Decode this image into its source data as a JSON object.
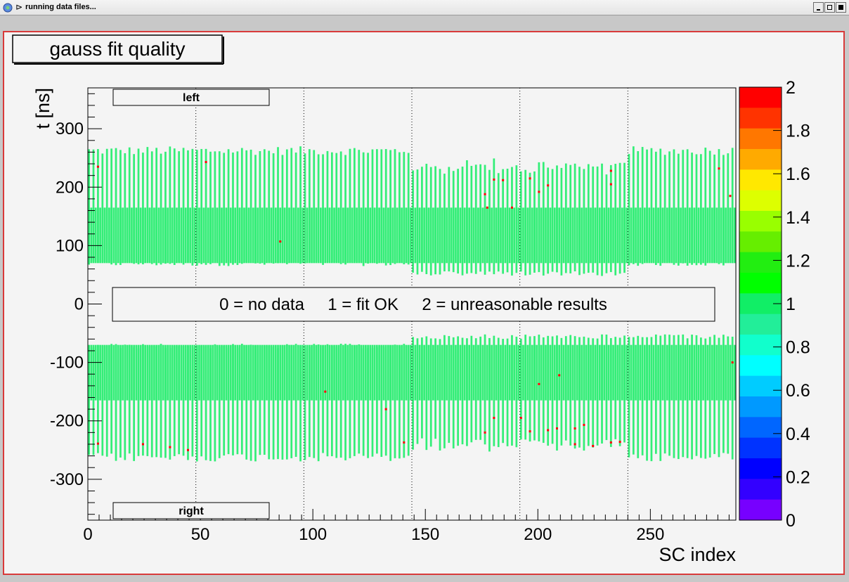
{
  "window": {
    "title": "running data files..."
  },
  "colors": {
    "frame_border": "#d83a3a",
    "background": "#f4f4f4",
    "bar_fill": "#33ee77",
    "quality2_mark": "#ff0000"
  },
  "chart_data": {
    "type": "heatmap",
    "title": "gauss fit quality",
    "xlabel": "SC index",
    "ylabel": "t  [ns]",
    "xlim": [
      0,
      288
    ],
    "ylim": [
      -370,
      370
    ],
    "xticks": [
      0,
      50,
      100,
      150,
      200,
      250
    ],
    "yticks": [
      -300,
      -200,
      -100,
      0,
      100,
      200,
      300
    ],
    "sector_boundaries": [
      48,
      96,
      144,
      192,
      240
    ],
    "legend_text": "0 = no data     1 = fit OK     2 = unreasonable results",
    "side_labels": {
      "top": "left",
      "bottom": "right"
    },
    "colorbar": {
      "min": 0,
      "max": 2,
      "tick_labels": [
        "2",
        "1.8",
        "1.6",
        "1.4",
        "1.2",
        "1",
        "0.8",
        "0.6",
        "0.4",
        "0.2",
        "0"
      ],
      "colors": [
        "#ff0000",
        "#ff3300",
        "#ff7700",
        "#ffaa00",
        "#ffe800",
        "#ddff00",
        "#99ff00",
        "#66ee00",
        "#22ee11",
        "#00ff00",
        "#11ee66",
        "#22ee99",
        "#11ffcc",
        "#00ffff",
        "#00ccff",
        "#0099ff",
        "#0066ff",
        "#0033ff",
        "#0000ff",
        "#3300ff",
        "#7700ff"
      ]
    },
    "bands": {
      "left": {
        "common_y": [
          70,
          165
        ],
        "upper_top_range": [
          255,
          270
        ]
      },
      "right": {
        "common_y": [
          -165,
          -70
        ],
        "lower_bottom_range": [
          -270,
          -255
        ]
      }
    },
    "quality2_points": [
      {
        "x": 85,
        "y": 107
      },
      {
        "x": 52,
        "y": 243
      },
      {
        "x": 176,
        "y": 188
      },
      {
        "x": 177,
        "y": 165
      },
      {
        "x": 180,
        "y": 213
      },
      {
        "x": 184,
        "y": 212
      },
      {
        "x": 188,
        "y": 165
      },
      {
        "x": 196,
        "y": 215
      },
      {
        "x": 200,
        "y": 192
      },
      {
        "x": 204,
        "y": 203
      },
      {
        "x": 232,
        "y": 228
      },
      {
        "x": 232,
        "y": 205
      },
      {
        "x": 280,
        "y": 232
      },
      {
        "x": 285,
        "y": 185
      },
      {
        "x": 4,
        "y": 235
      },
      {
        "x": 4,
        "y": -239
      },
      {
        "x": 24,
        "y": -240
      },
      {
        "x": 36,
        "y": -245
      },
      {
        "x": 44,
        "y": -250
      },
      {
        "x": 105,
        "y": -150
      },
      {
        "x": 132,
        "y": -180
      },
      {
        "x": 140,
        "y": -237
      },
      {
        "x": 176,
        "y": -220
      },
      {
        "x": 180,
        "y": -195
      },
      {
        "x": 192,
        "y": -195
      },
      {
        "x": 196,
        "y": -218
      },
      {
        "x": 200,
        "y": -137
      },
      {
        "x": 204,
        "y": -216
      },
      {
        "x": 208,
        "y": -213
      },
      {
        "x": 209,
        "y": -122
      },
      {
        "x": 216,
        "y": -213
      },
      {
        "x": 216,
        "y": -240
      },
      {
        "x": 220,
        "y": -207
      },
      {
        "x": 224,
        "y": -243
      },
      {
        "x": 232,
        "y": -237
      },
      {
        "x": 236,
        "y": -236
      },
      {
        "x": 286,
        "y": -100
      }
    ]
  }
}
